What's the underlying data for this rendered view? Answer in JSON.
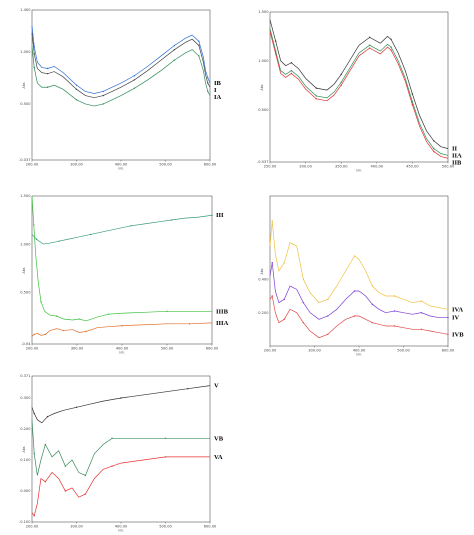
{
  "chart_data": [
    {
      "type": "line",
      "panel": "top-left",
      "xlabel": "nm.",
      "ylabel": "Abs.",
      "xlim": [
        200,
        600
      ],
      "ylim": [
        -0.037,
        1.4
      ],
      "x_ticks": [
        "200.00",
        "300.00",
        "400.00",
        "500.00",
        "600.00"
      ],
      "y_ticks": [
        "1.400",
        "1.000",
        "0.500",
        "-0.037"
      ],
      "series": [
        {
          "name": "IB",
          "color": "#2b6fd6",
          "x": [
            200,
            205,
            212,
            222,
            235,
            250,
            270,
            300,
            320,
            340,
            360,
            380,
            400,
            430,
            460,
            490,
            520,
            545,
            560,
            575,
            585,
            590,
            595,
            600
          ],
          "y": [
            1.25,
            1.05,
            0.9,
            0.85,
            0.84,
            0.86,
            0.8,
            0.68,
            0.62,
            0.6,
            0.62,
            0.66,
            0.7,
            0.77,
            0.86,
            0.96,
            1.06,
            1.13,
            1.16,
            1.1,
            0.95,
            0.82,
            0.75,
            0.7
          ]
        },
        {
          "name": "I",
          "color": "#444444",
          "x": [
            200,
            205,
            212,
            222,
            235,
            250,
            270,
            300,
            320,
            340,
            360,
            380,
            400,
            430,
            460,
            490,
            520,
            545,
            560,
            575,
            585,
            590,
            595,
            600
          ],
          "y": [
            1.18,
            0.98,
            0.84,
            0.8,
            0.79,
            0.81,
            0.76,
            0.64,
            0.58,
            0.56,
            0.58,
            0.62,
            0.66,
            0.73,
            0.82,
            0.92,
            1.02,
            1.09,
            1.12,
            1.06,
            0.9,
            0.78,
            0.7,
            0.66
          ]
        },
        {
          "name": "IA",
          "color": "#2e8b57",
          "x": [
            200,
            205,
            212,
            222,
            235,
            250,
            270,
            300,
            320,
            340,
            360,
            380,
            400,
            430,
            460,
            490,
            520,
            545,
            560,
            575,
            585,
            590,
            595,
            600
          ],
          "y": [
            1.05,
            0.85,
            0.7,
            0.66,
            0.66,
            0.68,
            0.64,
            0.54,
            0.5,
            0.48,
            0.5,
            0.54,
            0.58,
            0.65,
            0.73,
            0.82,
            0.92,
            0.99,
            1.02,
            0.96,
            0.82,
            0.7,
            0.62,
            0.58
          ]
        }
      ]
    },
    {
      "type": "line",
      "panel": "top-right",
      "xlabel": "nm.",
      "ylabel": "Abs.",
      "xlim": [
        250,
        500
      ],
      "ylim": [
        -0.037,
        1.5
      ],
      "x_ticks": [
        "250.00",
        "300.00",
        "350.00",
        "400.00",
        "450.00",
        "500.00"
      ],
      "y_ticks": [
        "1.500",
        "1.000",
        "0.500",
        "-0.037"
      ],
      "series": [
        {
          "name": "II",
          "color": "#333333",
          "x": [
            250,
            258,
            265,
            272,
            280,
            290,
            300,
            315,
            330,
            340,
            350,
            360,
            375,
            390,
            405,
            415,
            420,
            430,
            440,
            450,
            460,
            470,
            480,
            490,
            500
          ],
          "y": [
            1.42,
            1.2,
            1.0,
            0.95,
            0.98,
            0.92,
            0.82,
            0.72,
            0.7,
            0.76,
            0.86,
            0.98,
            1.16,
            1.24,
            1.18,
            1.25,
            1.22,
            1.08,
            0.9,
            0.66,
            0.44,
            0.28,
            0.18,
            0.12,
            0.1
          ]
        },
        {
          "name": "IIA",
          "color": "#2e8b57",
          "x": [
            250,
            258,
            265,
            272,
            280,
            290,
            300,
            315,
            330,
            340,
            350,
            360,
            375,
            390,
            405,
            415,
            420,
            430,
            440,
            450,
            460,
            470,
            480,
            490,
            500
          ],
          "y": [
            1.33,
            1.1,
            0.9,
            0.86,
            0.9,
            0.84,
            0.74,
            0.64,
            0.62,
            0.68,
            0.78,
            0.9,
            1.08,
            1.16,
            1.1,
            1.17,
            1.14,
            1.0,
            0.82,
            0.58,
            0.36,
            0.2,
            0.1,
            0.05,
            0.03
          ]
        },
        {
          "name": "IIB",
          "color": "#e03030",
          "x": [
            250,
            258,
            265,
            272,
            280,
            290,
            300,
            315,
            330,
            340,
            350,
            360,
            375,
            390,
            405,
            415,
            420,
            430,
            440,
            450,
            460,
            470,
            480,
            490,
            500
          ],
          "y": [
            1.3,
            1.07,
            0.87,
            0.83,
            0.87,
            0.81,
            0.71,
            0.61,
            0.59,
            0.65,
            0.75,
            0.87,
            1.05,
            1.13,
            1.07,
            1.14,
            1.11,
            0.97,
            0.79,
            0.55,
            0.33,
            0.17,
            0.07,
            0.02,
            0.0
          ]
        }
      ]
    },
    {
      "type": "line",
      "panel": "middle-left",
      "xlabel": "nm.",
      "ylabel": "Abs.",
      "xlim": [
        200,
        600
      ],
      "ylim": [
        -0.04,
        1.5
      ],
      "x_ticks": [
        "200.00",
        "300.00",
        "400.00",
        "500.00",
        "600.00"
      ],
      "y_ticks": [
        "1.500",
        "1.000",
        "0.500",
        "-0.04"
      ],
      "series": [
        {
          "name": "III",
          "color": "#3a9a7a",
          "x": [
            200,
            210,
            225,
            240,
            260,
            280,
            300,
            330,
            360,
            390,
            420,
            450,
            480,
            510,
            540,
            570,
            600
          ],
          "y": [
            1.1,
            1.05,
            1.0,
            1.01,
            1.03,
            1.05,
            1.07,
            1.1,
            1.13,
            1.16,
            1.19,
            1.21,
            1.23,
            1.25,
            1.27,
            1.28,
            1.3
          ]
        },
        {
          "name": "IIIB",
          "color": "#3cc03c",
          "x": [
            200,
            204,
            208,
            214,
            220,
            228,
            240,
            255,
            270,
            290,
            305,
            320,
            345,
            370,
            400,
            450,
            500,
            550,
            600
          ],
          "y": [
            1.5,
            1.2,
            0.9,
            0.6,
            0.4,
            0.3,
            0.26,
            0.25,
            0.22,
            0.21,
            0.22,
            0.2,
            0.24,
            0.27,
            0.28,
            0.29,
            0.3,
            0.3,
            0.3
          ]
        },
        {
          "name": "IIIA",
          "color": "#e0702a",
          "x": [
            200,
            205,
            212,
            220,
            230,
            240,
            255,
            270,
            290,
            305,
            320,
            345,
            370,
            400,
            450,
            500,
            550,
            600
          ],
          "y": [
            0.04,
            0.06,
            0.07,
            0.05,
            0.06,
            0.1,
            0.12,
            0.1,
            0.11,
            0.08,
            0.09,
            0.13,
            0.14,
            0.15,
            0.16,
            0.17,
            0.17,
            0.18
          ]
        }
      ]
    },
    {
      "type": "line",
      "panel": "middle-right",
      "xlabel": "nm.",
      "ylabel": "Abs.",
      "xlim": [
        200,
        600
      ],
      "ylim": [
        0.0,
        0.9
      ],
      "x_ticks": [
        "200.00",
        "300.00",
        "400.00",
        "500.00",
        "600.00"
      ],
      "y_ticks": [
        "0.400",
        "0.200"
      ],
      "series": [
        {
          "name": "IVA",
          "color": "#f0c040",
          "x": [
            200,
            205,
            212,
            220,
            232,
            245,
            260,
            275,
            290,
            310,
            330,
            350,
            370,
            390,
            400,
            415,
            430,
            445,
            460,
            480,
            500,
            520,
            540,
            560,
            580,
            600
          ],
          "y": [
            0.6,
            0.75,
            0.55,
            0.45,
            0.5,
            0.62,
            0.6,
            0.4,
            0.32,
            0.26,
            0.28,
            0.36,
            0.45,
            0.54,
            0.52,
            0.45,
            0.36,
            0.32,
            0.3,
            0.3,
            0.28,
            0.26,
            0.27,
            0.24,
            0.23,
            0.22
          ]
        },
        {
          "name": "IV",
          "color": "#7b3fd6",
          "x": [
            200,
            205,
            212,
            220,
            232,
            245,
            260,
            275,
            290,
            310,
            330,
            350,
            370,
            390,
            400,
            415,
            430,
            445,
            460,
            480,
            500,
            520,
            540,
            560,
            580,
            600
          ],
          "y": [
            0.42,
            0.5,
            0.33,
            0.26,
            0.28,
            0.36,
            0.34,
            0.26,
            0.2,
            0.16,
            0.18,
            0.22,
            0.28,
            0.33,
            0.33,
            0.3,
            0.25,
            0.22,
            0.2,
            0.21,
            0.2,
            0.19,
            0.2,
            0.18,
            0.17,
            0.17
          ]
        },
        {
          "name": "IVB",
          "color": "#e04848",
          "x": [
            200,
            205,
            212,
            220,
            232,
            245,
            260,
            275,
            290,
            310,
            330,
            350,
            370,
            390,
            400,
            415,
            430,
            445,
            460,
            480,
            500,
            520,
            540,
            560,
            580,
            600
          ],
          "y": [
            0.28,
            0.3,
            0.2,
            0.14,
            0.16,
            0.22,
            0.2,
            0.14,
            0.09,
            0.05,
            0.07,
            0.12,
            0.16,
            0.18,
            0.18,
            0.16,
            0.14,
            0.13,
            0.12,
            0.12,
            0.11,
            0.1,
            0.1,
            0.09,
            0.08,
            0.07
          ]
        }
      ]
    },
    {
      "type": "line",
      "panel": "bottom-left",
      "xlabel": "nm.",
      "ylabel": "Abs.",
      "xlim": [
        200,
        600
      ],
      "ylim": [
        -0.1,
        0.371
      ],
      "x_ticks": [
        "200.00",
        "300.00",
        "400.00",
        "500.00",
        "600.00"
      ],
      "y_ticks": [
        "0.371",
        "0.300",
        "0.200",
        "0.100",
        "0.000",
        "-0.100"
      ],
      "series": [
        {
          "name": "V",
          "color": "#333333",
          "x": [
            200,
            205,
            212,
            222,
            235,
            250,
            270,
            300,
            330,
            360,
            400,
            450,
            500,
            550,
            600
          ],
          "y": [
            0.27,
            0.25,
            0.23,
            0.22,
            0.24,
            0.25,
            0.26,
            0.27,
            0.28,
            0.29,
            0.3,
            0.31,
            0.32,
            0.33,
            0.34
          ]
        },
        {
          "name": "VB",
          "color": "#3a8a5a",
          "x": [
            200,
            205,
            212,
            220,
            230,
            245,
            260,
            275,
            290,
            305,
            320,
            340,
            360,
            380,
            400,
            450,
            500,
            550,
            600
          ],
          "y": [
            0.23,
            0.12,
            0.05,
            0.1,
            0.15,
            0.11,
            0.13,
            0.08,
            0.1,
            0.06,
            0.05,
            0.12,
            0.15,
            0.17,
            0.17,
            0.17,
            0.17,
            0.17,
            0.17
          ]
        },
        {
          "name": "VA",
          "color": "#e83030",
          "x": [
            200,
            205,
            212,
            220,
            230,
            245,
            260,
            275,
            290,
            305,
            320,
            340,
            360,
            380,
            400,
            450,
            500,
            550,
            600
          ],
          "y": [
            -0.07,
            -0.08,
            -0.04,
            0.04,
            0.03,
            0.06,
            0.04,
            0.0,
            0.01,
            -0.02,
            -0.01,
            0.04,
            0.07,
            0.08,
            0.09,
            0.1,
            0.11,
            0.11,
            0.11
          ]
        }
      ]
    }
  ]
}
